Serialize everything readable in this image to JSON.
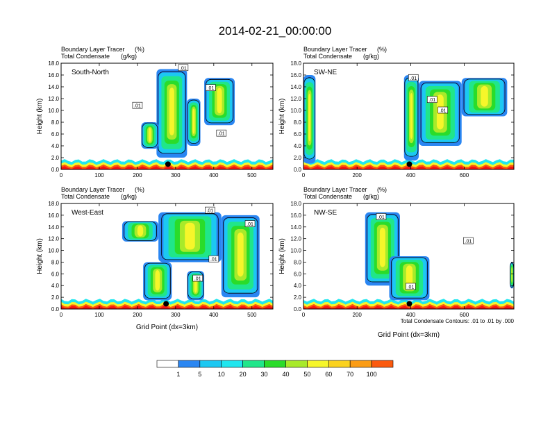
{
  "figure_title": "2014-02-21_00:00:00",
  "footnote": "Total Condensate Contours: .01 to .01 by .000",
  "colorbar": {
    "labels": [
      "1",
      "5",
      "10",
      "20",
      "30",
      "40",
      "50",
      "60",
      "70",
      "100"
    ],
    "colors": [
      "#ffffff",
      "#2a86f2",
      "#1cc8f2",
      "#20e6ee",
      "#20e68a",
      "#2adc2a",
      "#a8ea2a",
      "#f6f62a",
      "#fbd21e",
      "#fb9c14",
      "#fb5a0e",
      "#f61212"
    ]
  },
  "chart_data": [
    {
      "type": "heatmap",
      "panel": "South-North",
      "subtitle_line1": "Boundary Layer Tracer",
      "unit1": "(%)",
      "subtitle_line2": "Total Condensate",
      "unit2": "(g/kg)",
      "ylabel": "Height (km)",
      "xlabel": "",
      "xlim": [
        0,
        555
      ],
      "ylim": [
        0,
        18
      ],
      "xticks": [
        "0",
        "100",
        "200",
        "300",
        "400",
        "500"
      ],
      "xtick_values": [
        0,
        100,
        200,
        300,
        400,
        500
      ],
      "yticks": [
        "0.0",
        "2.0",
        "4.0",
        "6.0",
        "8.0",
        "10.0",
        "12.0",
        "14.0",
        "16.0",
        "18.0"
      ],
      "marker_x": 280,
      "marker_y": 0.9,
      "contour_labels": [
        {
          "text": ".01",
          "x": 320,
          "y": 17.2
        },
        {
          "text": ".01",
          "x": 392,
          "y": 13.8
        },
        {
          "text": ".01",
          "x": 200,
          "y": 10.8
        },
        {
          "text": ".01",
          "x": 420,
          "y": 6.1
        }
      ],
      "plumes": [
        {
          "x": [
            250,
            330
          ],
          "top": 17.0,
          "base": 2.0
        },
        {
          "x": [
            330,
            365
          ],
          "top": 12.0,
          "base": 4.0
        },
        {
          "x": [
            375,
            455
          ],
          "top": 15.5,
          "base": 7.5
        },
        {
          "x": [
            210,
            255
          ],
          "top": 8.0,
          "base": 3.5
        }
      ]
    },
    {
      "type": "heatmap",
      "panel": "SW-NE",
      "subtitle_line1": "Boundary Layer Tracer",
      "unit1": "(%)",
      "subtitle_line2": "Total Condensate",
      "unit2": "(g/kg)",
      "ylabel": "Height (km)",
      "xlabel": "",
      "xlim": [
        0,
        785
      ],
      "ylim": [
        0,
        18
      ],
      "xticks": [
        "0",
        "200",
        "400",
        "600"
      ],
      "xtick_values": [
        0,
        200,
        400,
        600
      ],
      "yticks": [
        "0.0",
        "2.0",
        "4.0",
        "6.0",
        "8.0",
        "10.0",
        "12.0",
        "14.0",
        "16.0",
        "18.0"
      ],
      "marker_x": 395,
      "marker_y": 0.9,
      "contour_labels": [
        {
          "text": ".01",
          "x": 410,
          "y": 15.5
        },
        {
          "text": ".01",
          "x": 480,
          "y": 11.8
        },
        {
          "text": ".01",
          "x": 520,
          "y": 10.0
        }
      ],
      "plumes": [
        {
          "x": [
            0,
            45
          ],
          "top": 16.0,
          "base": 1.0
        },
        {
          "x": [
            375,
            430
          ],
          "top": 16.0,
          "base": 1.5
        },
        {
          "x": [
            430,
            590
          ],
          "top": 15.0,
          "base": 4.0
        },
        {
          "x": [
            590,
            760
          ],
          "top": 15.5,
          "base": 9.0
        }
      ]
    },
    {
      "type": "heatmap",
      "panel": "West-East",
      "subtitle_line1": "Boundary Layer Tracer",
      "unit1": "(%)",
      "subtitle_line2": "Total Condensate",
      "unit2": "(g/kg)",
      "ylabel": "Height (km)",
      "xlabel": "Grid Point (dx=3km)",
      "xlim": [
        0,
        555
      ],
      "ylim": [
        0,
        18
      ],
      "xticks": [
        "0",
        "100",
        "200",
        "300",
        "400",
        "500"
      ],
      "xtick_values": [
        0,
        100,
        200,
        300,
        400,
        500
      ],
      "yticks": [
        "0.0",
        "2.0",
        "4.0",
        "6.0",
        "8.0",
        "10.0",
        "12.0",
        "14.0",
        "16.0",
        "18.0"
      ],
      "marker_x": 275,
      "marker_y": 0.9,
      "contour_labels": [
        {
          "text": ".01",
          "x": 390,
          "y": 16.8
        },
        {
          "text": ".01",
          "x": 495,
          "y": 14.5
        },
        {
          "text": ".01",
          "x": 400,
          "y": 8.5
        },
        {
          "text": ".01",
          "x": 358,
          "y": 5.2
        }
      ],
      "plumes": [
        {
          "x": [
            160,
            255
          ],
          "top": 15.0,
          "base": 11.5
        },
        {
          "x": [
            255,
            420
          ],
          "top": 16.5,
          "base": 8.0
        },
        {
          "x": [
            420,
            520
          ],
          "top": 16.0,
          "base": 2.0
        },
        {
          "x": [
            215,
            290
          ],
          "top": 8.0,
          "base": 1.5
        },
        {
          "x": [
            330,
            375
          ],
          "top": 6.5,
          "base": 1.5
        }
      ]
    },
    {
      "type": "heatmap",
      "panel": "NW-SE",
      "subtitle_line1": "Boundary Layer Tracer",
      "unit1": "(%)",
      "subtitle_line2": "Total Condensate",
      "unit2": "(g/kg)",
      "ylabel": "Height (km)",
      "xlabel": "Grid Point (dx=3km)",
      "xlim": [
        0,
        785
      ],
      "ylim": [
        0,
        18
      ],
      "xticks": [
        "0",
        "200",
        "400",
        "600"
      ],
      "xtick_values": [
        0,
        200,
        400,
        600
      ],
      "yticks": [
        "0.0",
        "2.0",
        "4.0",
        "6.0",
        "8.0",
        "10.0",
        "12.0",
        "14.0",
        "16.0",
        "18.0"
      ],
      "marker_x": 395,
      "marker_y": 0.9,
      "contour_labels": [
        {
          "text": ".01",
          "x": 290,
          "y": 15.7
        },
        {
          "text": ".01",
          "x": 615,
          "y": 11.6
        },
        {
          "text": ".01",
          "x": 400,
          "y": 3.8
        }
      ],
      "plumes": [
        {
          "x": [
            230,
            360
          ],
          "top": 16.5,
          "base": 4.0
        },
        {
          "x": [
            320,
            470
          ],
          "top": 9.0,
          "base": 1.5
        },
        {
          "x": [
            770,
            785
          ],
          "top": 8.0,
          "base": 3.5
        }
      ]
    }
  ]
}
